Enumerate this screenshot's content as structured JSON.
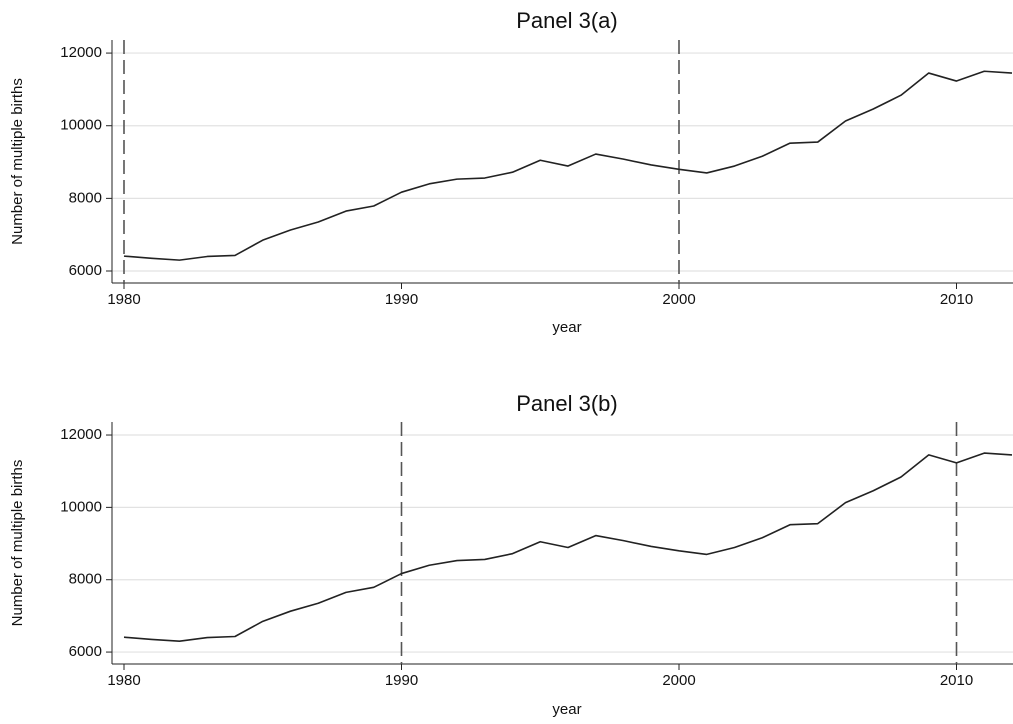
{
  "chart_data": [
    {
      "type": "line",
      "title": "Panel 3(a)",
      "x_label": "year",
      "y_label": "Number of multiple births",
      "x": [
        1980,
        1981,
        1982,
        1983,
        1984,
        1985,
        1986,
        1987,
        1988,
        1989,
        1990,
        1991,
        1992,
        1993,
        1994,
        1995,
        1996,
        1997,
        1998,
        1999,
        2000,
        2001,
        2002,
        2003,
        2004,
        2005,
        2006,
        2007,
        2008,
        2009,
        2010,
        2011,
        2012
      ],
      "values": [
        6410,
        6350,
        6300,
        6400,
        6430,
        6850,
        7130,
        7350,
        7650,
        7790,
        8170,
        8400,
        8530,
        8560,
        8720,
        9050,
        8890,
        9220,
        9080,
        8920,
        8800,
        8700,
        8890,
        9160,
        9520,
        9550,
        10130,
        10460,
        10840,
        11450,
        11230,
        11500,
        11450
      ],
      "color": "#222222",
      "xlim": [
        1980,
        2012
      ],
      "xticks": [
        1980,
        1990,
        2000,
        2010
      ],
      "ylim": [
        5670,
        12360
      ],
      "yticks": [
        6000,
        8000,
        10000,
        12000
      ],
      "grid": true,
      "vlines": [
        1980,
        2000
      ]
    },
    {
      "type": "line",
      "title": "Panel 3(b)",
      "x_label": "year",
      "y_label": "Number of multiple births",
      "x": [
        1980,
        1981,
        1982,
        1983,
        1984,
        1985,
        1986,
        1987,
        1988,
        1989,
        1990,
        1991,
        1992,
        1993,
        1994,
        1995,
        1996,
        1997,
        1998,
        1999,
        2000,
        2001,
        2002,
        2003,
        2004,
        2005,
        2006,
        2007,
        2008,
        2009,
        2010,
        2011,
        2012
      ],
      "values": [
        6410,
        6350,
        6300,
        6400,
        6430,
        6850,
        7130,
        7350,
        7650,
        7790,
        8170,
        8400,
        8530,
        8560,
        8720,
        9050,
        8890,
        9220,
        9080,
        8920,
        8800,
        8700,
        8890,
        9160,
        9520,
        9550,
        10130,
        10460,
        10840,
        11450,
        11230,
        11500,
        11450
      ],
      "color": "#222222",
      "xlim": [
        1980,
        2012
      ],
      "xticks": [
        1980,
        1990,
        2000,
        2010
      ],
      "ylim": [
        5670,
        12360
      ],
      "yticks": [
        6000,
        8000,
        10000,
        12000
      ],
      "grid": true,
      "vlines": [
        1990,
        2010
      ]
    }
  ]
}
